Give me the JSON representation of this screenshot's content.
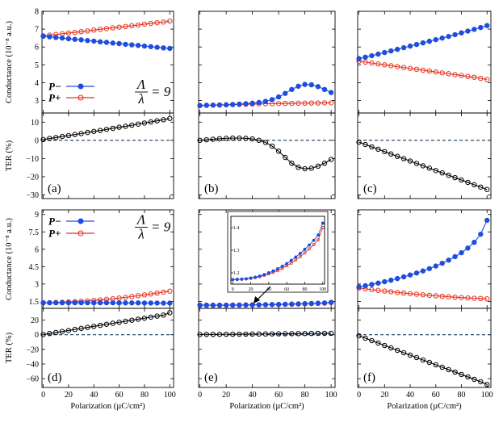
{
  "figure": {
    "x_axis_label": "Polarization (µC/cm²)",
    "x_ticks": [
      0,
      20,
      40,
      60,
      80,
      100
    ],
    "legend": {
      "minus_label": "P−",
      "plus_label": "P+",
      "ratio_label": "Λ/λ = 9",
      "ratio_top": "Λ",
      "ratio_bottom": "λ",
      "ratio_equals": "= 9"
    }
  },
  "colors": {
    "minus": "#1f4de0",
    "plus": "#e8321e",
    "ter": "#000000",
    "zero_line": "#1b3a5c"
  },
  "chart_data": [
    {
      "panel": "row1-conductance",
      "type": "line",
      "title": "",
      "xlabel": "",
      "ylabel": "Conductance (10⁻⁸ a.u.)",
      "ylim": [
        2.3,
        8
      ],
      "yticks": [
        3,
        4,
        5,
        6,
        7,
        8
      ],
      "x": [
        0,
        5,
        10,
        15,
        20,
        25,
        30,
        35,
        40,
        45,
        50,
        55,
        60,
        65,
        70,
        75,
        80,
        85,
        90,
        95,
        100
      ],
      "columns": [
        {
          "series": [
            {
              "name": "P−",
              "values": [
                6.6,
                6.57,
                6.53,
                6.5,
                6.46,
                6.43,
                6.4,
                6.36,
                6.33,
                6.29,
                6.26,
                6.22,
                6.19,
                6.15,
                6.12,
                6.09,
                6.05,
                6.02,
                5.98,
                5.95,
                5.92
              ]
            },
            {
              "name": "P+",
              "values": [
                6.62,
                6.66,
                6.7,
                6.74,
                6.78,
                6.82,
                6.86,
                6.9,
                6.95,
                6.99,
                7.03,
                7.07,
                7.11,
                7.15,
                7.19,
                7.23,
                7.28,
                7.32,
                7.36,
                7.4,
                7.45
              ]
            }
          ]
        },
        {
          "series": [
            {
              "name": "P−",
              "values": [
                2.72,
                2.73,
                2.74,
                2.75,
                2.76,
                2.78,
                2.8,
                2.82,
                2.85,
                2.89,
                2.95,
                3.05,
                3.2,
                3.4,
                3.62,
                3.8,
                3.9,
                3.88,
                3.78,
                3.62,
                3.45
              ]
            },
            {
              "name": "P+",
              "values": [
                2.72,
                2.73,
                2.74,
                2.75,
                2.76,
                2.77,
                2.78,
                2.79,
                2.8,
                2.81,
                2.82,
                2.82,
                2.83,
                2.84,
                2.84,
                2.85,
                2.85,
                2.86,
                2.86,
                2.87,
                2.87
              ]
            }
          ]
        },
        {
          "series": [
            {
              "name": "P−",
              "values": [
                5.35,
                5.43,
                5.51,
                5.6,
                5.69,
                5.78,
                5.87,
                5.96,
                6.05,
                6.14,
                6.23,
                6.32,
                6.41,
                6.5,
                6.59,
                6.69,
                6.79,
                6.89,
                6.99,
                7.09,
                7.2
              ]
            },
            {
              "name": "P+",
              "values": [
                5.2,
                5.15,
                5.1,
                5.05,
                5.0,
                4.95,
                4.9,
                4.85,
                4.8,
                4.75,
                4.7,
                4.65,
                4.6,
                4.55,
                4.5,
                4.45,
                4.4,
                4.35,
                4.3,
                4.24,
                4.18
              ]
            }
          ]
        }
      ]
    },
    {
      "panel": "row1-ter",
      "type": "line",
      "title": "",
      "xlabel": "",
      "ylabel": "TER (%)",
      "ylim": [
        -32,
        15
      ],
      "yticks": [
        10,
        0,
        -10,
        -20,
        -30
      ],
      "x": [
        0,
        5,
        10,
        15,
        20,
        25,
        30,
        35,
        40,
        45,
        50,
        55,
        60,
        65,
        70,
        75,
        80,
        85,
        90,
        95,
        100
      ],
      "columns": [
        {
          "label": "(a)",
          "series": [
            {
              "name": "TER",
              "values": [
                0.4,
                1.0,
                1.5,
                2.1,
                2.6,
                3.2,
                3.7,
                4.3,
                4.9,
                5.4,
                6.0,
                6.6,
                7.2,
                7.7,
                8.3,
                8.9,
                9.5,
                10.1,
                10.7,
                11.3,
                12.0
              ]
            }
          ]
        },
        {
          "label": "(b)",
          "series": [
            {
              "name": "TER",
              "values": [
                0.0,
                0.3,
                0.6,
                0.9,
                1.1,
                1.2,
                1.2,
                1.1,
                0.8,
                0.0,
                -1.2,
                -3.2,
                -6.0,
                -9.4,
                -12.6,
                -14.8,
                -15.6,
                -15.3,
                -14.2,
                -12.6,
                -10.5
              ]
            }
          ]
        },
        {
          "label": "(c)",
          "series": [
            {
              "name": "TER",
              "values": [
                -1.0,
                -2.3,
                -3.6,
                -4.9,
                -6.2,
                -7.5,
                -8.8,
                -10.1,
                -11.4,
                -12.7,
                -14.0,
                -15.3,
                -16.6,
                -17.9,
                -19.2,
                -20.5,
                -21.8,
                -23.1,
                -24.4,
                -25.7,
                -27.0
              ]
            }
          ]
        }
      ]
    },
    {
      "panel": "row2-conductance",
      "type": "line",
      "title": "",
      "xlabel": "",
      "ylabel": "Conductance (10⁻⁸ a.u.)",
      "ylim": [
        0.9,
        9.4
      ],
      "yticks": [
        1.5,
        3,
        4.5,
        6,
        7.5,
        9
      ],
      "x": [
        0,
        5,
        10,
        15,
        20,
        25,
        30,
        35,
        40,
        45,
        50,
        55,
        60,
        65,
        70,
        75,
        80,
        85,
        90,
        95,
        100
      ],
      "columns": [
        {
          "series": [
            {
              "name": "P−",
              "values": [
                1.38,
                1.38,
                1.38,
                1.38,
                1.38,
                1.38,
                1.38,
                1.38,
                1.38,
                1.38,
                1.38,
                1.38,
                1.37,
                1.37,
                1.37,
                1.37,
                1.36,
                1.36,
                1.36,
                1.35,
                1.35
              ]
            },
            {
              "name": "P+",
              "values": [
                1.38,
                1.39,
                1.41,
                1.43,
                1.45,
                1.48,
                1.51,
                1.55,
                1.59,
                1.63,
                1.68,
                1.73,
                1.79,
                1.85,
                1.92,
                1.99,
                2.06,
                2.14,
                2.22,
                2.3,
                2.38
              ]
            }
          ]
        },
        {
          "series": [
            {
              "name": "P−",
              "values": [
                1.17,
                1.171,
                1.172,
                1.174,
                1.177,
                1.181,
                1.186,
                1.192,
                1.2,
                1.208,
                1.218,
                1.229,
                1.241,
                1.255,
                1.27,
                1.286,
                1.304,
                1.323,
                1.344,
                1.367,
                1.42
              ]
            },
            {
              "name": "P+",
              "values": [
                1.17,
                1.171,
                1.172,
                1.173,
                1.176,
                1.179,
                1.183,
                1.189,
                1.195,
                1.202,
                1.21,
                1.22,
                1.231,
                1.243,
                1.257,
                1.272,
                1.288,
                1.306,
                1.325,
                1.346,
                1.4
              ]
            }
          ]
        },
        {
          "series": [
            {
              "name": "P−",
              "values": [
                2.75,
                2.85,
                2.96,
                3.08,
                3.2,
                3.33,
                3.47,
                3.62,
                3.78,
                3.95,
                4.13,
                4.33,
                4.55,
                4.79,
                5.06,
                5.36,
                5.7,
                6.1,
                6.6,
                7.3,
                8.5
              ]
            },
            {
              "name": "P+",
              "values": [
                2.65,
                2.58,
                2.51,
                2.45,
                2.39,
                2.33,
                2.27,
                2.22,
                2.17,
                2.12,
                2.07,
                2.02,
                1.98,
                1.94,
                1.9,
                1.86,
                1.83,
                1.8,
                1.77,
                1.75,
                1.72
              ]
            }
          ]
        }
      ]
    },
    {
      "panel": "row2-ter",
      "type": "line",
      "title": "",
      "xlabel": "Polarization (µC/cm²)",
      "ylabel": "TER (%)",
      "ylim": [
        -72,
        36
      ],
      "yticks": [
        20,
        0,
        -20,
        -40,
        -60
      ],
      "x": [
        0,
        5,
        10,
        15,
        20,
        25,
        30,
        35,
        40,
        45,
        50,
        55,
        60,
        65,
        70,
        75,
        80,
        85,
        90,
        95,
        100
      ],
      "columns": [
        {
          "label": "(d)",
          "series": [
            {
              "name": "TER",
              "values": [
                0.3,
                1.6,
                3.0,
                4.4,
                5.8,
                7.2,
                8.6,
                10.0,
                11.4,
                12.8,
                14.2,
                15.6,
                17.0,
                18.4,
                19.8,
                21.2,
                22.6,
                24.0,
                25.4,
                26.8,
                30.0
              ]
            }
          ]
        },
        {
          "label": "(e)",
          "series": [
            {
              "name": "TER",
              "values": [
                0.3,
                0.4,
                0.4,
                0.5,
                0.6,
                0.6,
                0.7,
                0.8,
                0.9,
                1.0,
                1.0,
                1.1,
                1.2,
                1.3,
                1.4,
                1.5,
                1.6,
                1.7,
                1.8,
                1.8,
                1.9
              ]
            }
          ]
        },
        {
          "label": "(f)",
          "series": [
            {
              "name": "TER",
              "values": [
                -1.5,
                -4.8,
                -8.1,
                -11.4,
                -14.7,
                -18.0,
                -21.3,
                -24.6,
                -27.9,
                -31.2,
                -34.5,
                -37.8,
                -41.1,
                -44.4,
                -47.7,
                -51.0,
                -54.3,
                -57.6,
                -60.9,
                -64.2,
                -68.0
              ]
            }
          ]
        }
      ]
    },
    {
      "panel": "inset-e",
      "type": "line",
      "title": "",
      "xlabel": "",
      "ylabel": "",
      "xlim": [
        0,
        100
      ],
      "ylim": [
        1.15,
        1.45
      ],
      "xticks": [
        0,
        20,
        40,
        60,
        80,
        100
      ],
      "yticks": [
        1.2,
        1.3,
        1.4
      ],
      "x": [
        0,
        5,
        10,
        15,
        20,
        25,
        30,
        35,
        40,
        45,
        50,
        55,
        60,
        65,
        70,
        75,
        80,
        85,
        90,
        95,
        100
      ],
      "series": [
        {
          "name": "P−",
          "values": [
            1.17,
            1.171,
            1.172,
            1.174,
            1.177,
            1.181,
            1.186,
            1.192,
            1.2,
            1.208,
            1.218,
            1.229,
            1.241,
            1.255,
            1.27,
            1.286,
            1.304,
            1.323,
            1.344,
            1.367,
            1.42
          ]
        },
        {
          "name": "P+",
          "values": [
            1.17,
            1.171,
            1.172,
            1.173,
            1.176,
            1.179,
            1.183,
            1.189,
            1.195,
            1.202,
            1.21,
            1.22,
            1.231,
            1.243,
            1.257,
            1.272,
            1.288,
            1.306,
            1.325,
            1.346,
            1.4
          ]
        }
      ]
    }
  ]
}
